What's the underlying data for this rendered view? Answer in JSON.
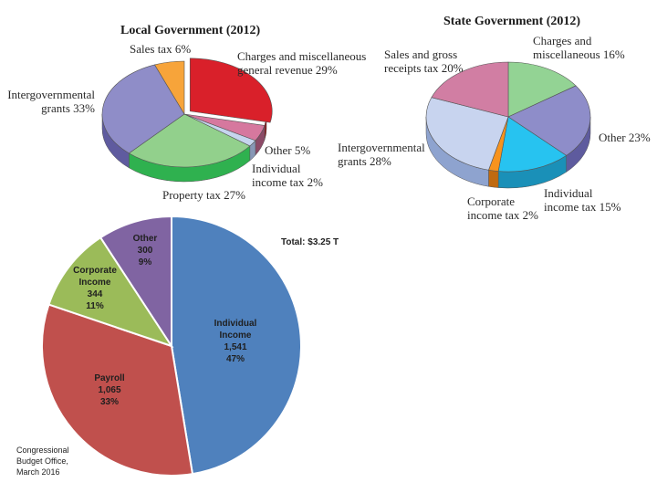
{
  "chart_data": [
    {
      "type": "pie",
      "title": "Local Government (2012)",
      "unit": "%",
      "slices": [
        {
          "name": "Charges and miscellaneous general revenue",
          "label_lines": [
            "Charges and miscellaneous",
            "general revenue 29%"
          ],
          "value": 29,
          "color": "#d9202a",
          "side": "#8e1419"
        },
        {
          "name": "Other",
          "label_lines": [
            "Other 5%"
          ],
          "value": 5,
          "color": "#d6789e",
          "side": "#8c4a67"
        },
        {
          "name": "Individual income tax",
          "label_lines": [
            "Individual",
            "income tax 2%"
          ],
          "value": 2,
          "color": "#c6d5ee",
          "side": "#8797b5"
        },
        {
          "name": "Property tax",
          "label_lines": [
            "Property tax 27%"
          ],
          "value": 27,
          "color": "#92d08c",
          "side": "#2fb14f"
        },
        {
          "name": "Intergovernmental grants",
          "label_lines": [
            "Intergovernmental",
            "grants 33%"
          ],
          "value": 33,
          "color": "#8f8dc8",
          "side": "#5f5b9f"
        },
        {
          "name": "Sales tax",
          "label_lines": [
            "Sales tax 6%"
          ],
          "value": 6,
          "color": "#f7a43a",
          "side": "#c87a1c"
        }
      ]
    },
    {
      "type": "pie",
      "title": "State Government (2012)",
      "unit": "%",
      "slices": [
        {
          "name": "Charges and miscellaneous",
          "label_lines": [
            "Charges and",
            "miscellaneous 16%"
          ],
          "value": 16,
          "color": "#93d394",
          "side": "#5aa65b"
        },
        {
          "name": "Other",
          "label_lines": [
            "Other 23%"
          ],
          "value": 23,
          "color": "#8e8dc9",
          "side": "#5e5b9e"
        },
        {
          "name": "Individual income tax",
          "label_lines": [
            "Individual",
            "income tax 15%"
          ],
          "value": 15,
          "color": "#27c3f0",
          "side": "#1a90b8"
        },
        {
          "name": "Corporate income tax",
          "label_lines": [
            "Corporate",
            "income tax 2%"
          ],
          "value": 2,
          "color": "#f7931e",
          "side": "#bf6a10"
        },
        {
          "name": "Intergovernmental grants",
          "label_lines": [
            "Intergovernmental",
            "grants 28%"
          ],
          "value": 28,
          "color": "#c8d4ef",
          "side": "#8ea3cf"
        },
        {
          "name": "Sales and gross receipts tax",
          "label_lines": [
            "Sales and gross",
            "receipts tax 20%"
          ],
          "value": 20,
          "color": "#d17ea3",
          "side": "#9c5877"
        }
      ]
    },
    {
      "type": "pie",
      "title": "Total: $3.25 T",
      "slices": [
        {
          "name": "Individual Income",
          "label_lines": [
            "Individual",
            "Income",
            "1,541",
            "47%"
          ],
          "value": 1541,
          "percent": 47,
          "color": "#4f81bd"
        },
        {
          "name": "Payroll",
          "label_lines": [
            "Payroll",
            "1,065",
            "33%"
          ],
          "value": 1065,
          "percent": 33,
          "color": "#c0504d"
        },
        {
          "name": "Corporate Income",
          "label_lines": [
            "Corporate",
            "Income",
            "344",
            "11%"
          ],
          "value": 344,
          "percent": 11,
          "color": "#9bbb59"
        },
        {
          "name": "Other",
          "label_lines": [
            "Other",
            "300",
            "9%"
          ],
          "value": 300,
          "percent": 9,
          "color": "#8064a2"
        }
      ]
    }
  ],
  "source_note_lines": [
    "Congressional",
    "Budget Office,",
    "March 2016"
  ]
}
